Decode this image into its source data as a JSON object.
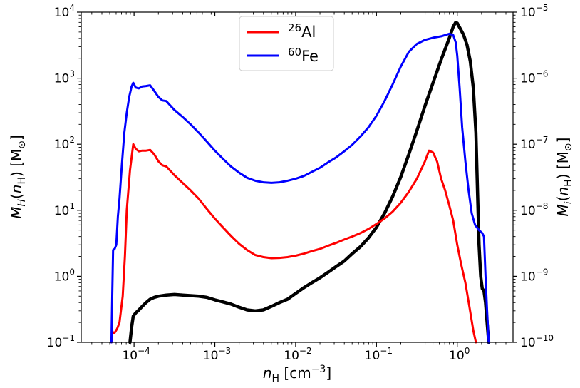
{
  "chart_data": {
    "type": "line",
    "xlabel": "n_H [cm^-3]",
    "ylabel_left": "M_H(n_H) [M_⊙]",
    "ylabel_right": "M_i(n_H) [M_⊙]",
    "x_scale": "log",
    "y_scale": "log",
    "xlim": [
      2.22e-05,
      4.9
    ],
    "ylim_left": [
      0.1,
      10000
    ],
    "ylim_right": [
      1e-10,
      1e-05
    ],
    "grid": false,
    "legend_position": "top-center",
    "x_ticks": [
      {
        "value": 0.0001,
        "base": "10",
        "exp": "-4"
      },
      {
        "value": 0.001,
        "base": "10",
        "exp": "-3"
      },
      {
        "value": 0.01,
        "base": "10",
        "exp": "-2"
      },
      {
        "value": 0.1,
        "base": "10",
        "exp": "-1"
      },
      {
        "value": 1,
        "base": "10",
        "exp": "0"
      }
    ],
    "y_ticks_left": [
      {
        "value": 0.1,
        "base": "10",
        "exp": "-1"
      },
      {
        "value": 1,
        "base": "10",
        "exp": "0"
      },
      {
        "value": 10,
        "base": "10",
        "exp": "1"
      },
      {
        "value": 100,
        "base": "10",
        "exp": "2"
      },
      {
        "value": 1000,
        "base": "10",
        "exp": "3"
      },
      {
        "value": 10000,
        "base": "10",
        "exp": "4"
      }
    ],
    "y_ticks_right": [
      {
        "value": 1e-10,
        "base": "10",
        "exp": "-10"
      },
      {
        "value": 1e-09,
        "base": "10",
        "exp": "-9"
      },
      {
        "value": 1e-08,
        "base": "10",
        "exp": "-8"
      },
      {
        "value": 1e-07,
        "base": "10",
        "exp": "-7"
      },
      {
        "value": 1e-06,
        "base": "10",
        "exp": "-6"
      },
      {
        "value": 1e-05,
        "base": "10",
        "exp": "-5"
      }
    ],
    "series": [
      {
        "name": "",
        "axis": "left",
        "color": "#000000",
        "points": [
          [
            8.91e-05,
            0.1
          ],
          [
            9.33e-05,
            0.17
          ],
          [
            9.77e-05,
            0.25
          ],
          [
            0.000105,
            0.28
          ],
          [
            0.000112,
            0.3
          ],
          [
            0.000126,
            0.35
          ],
          [
            0.000141,
            0.4
          ],
          [
            0.000158,
            0.45
          ],
          [
            0.000178,
            0.48
          ],
          [
            0.0002,
            0.5
          ],
          [
            0.000251,
            0.52
          ],
          [
            0.000316,
            0.53
          ],
          [
            0.000398,
            0.52
          ],
          [
            0.000501,
            0.51
          ],
          [
            0.000631,
            0.5
          ],
          [
            0.000794,
            0.48
          ],
          [
            0.001,
            0.44
          ],
          [
            0.00126,
            0.41
          ],
          [
            0.00158,
            0.38
          ],
          [
            0.002,
            0.34
          ],
          [
            0.00251,
            0.31
          ],
          [
            0.00316,
            0.3
          ],
          [
            0.00398,
            0.31
          ],
          [
            0.00501,
            0.35
          ],
          [
            0.00631,
            0.4
          ],
          [
            0.00794,
            0.45
          ],
          [
            0.01,
            0.55
          ],
          [
            0.0126,
            0.67
          ],
          [
            0.0158,
            0.8
          ],
          [
            0.02,
            0.95
          ],
          [
            0.0251,
            1.15
          ],
          [
            0.0316,
            1.4
          ],
          [
            0.0398,
            1.7
          ],
          [
            0.0501,
            2.2
          ],
          [
            0.0631,
            2.8
          ],
          [
            0.0794,
            3.8
          ],
          [
            0.1,
            5.5
          ],
          [
            0.126,
            9
          ],
          [
            0.158,
            16
          ],
          [
            0.2,
            32
          ],
          [
            0.251,
            70
          ],
          [
            0.316,
            160
          ],
          [
            0.398,
            380
          ],
          [
            0.501,
            850
          ],
          [
            0.631,
            1900
          ],
          [
            0.794,
            4000
          ],
          [
            0.891,
            6000
          ],
          [
            0.955,
            7000
          ],
          [
            1.0,
            6800
          ],
          [
            1.1,
            5500
          ],
          [
            1.2,
            4500
          ],
          [
            1.32,
            3200
          ],
          [
            1.45,
            1800
          ],
          [
            1.58,
            700
          ],
          [
            1.7,
            150
          ],
          [
            1.78,
            20
          ],
          [
            1.86,
            3
          ],
          [
            1.95,
            1
          ],
          [
            2.04,
            0.65
          ],
          [
            2.14,
            0.6
          ],
          [
            2.24,
            0.4
          ],
          [
            2.34,
            0.2
          ],
          [
            2.45,
            0.1
          ]
        ]
      },
      {
        "name": "26Al",
        "axis": "left",
        "color": "#ff0000",
        "points": [
          [
            5.25e-05,
            0.1
          ],
          [
            5.37e-05,
            0.15
          ],
          [
            5.5e-05,
            0.14
          ],
          [
            5.75e-05,
            0.14
          ],
          [
            6.17e-05,
            0.16
          ],
          [
            6.61e-05,
            0.2
          ],
          [
            7.24e-05,
            0.5
          ],
          [
            7.7e-05,
            2
          ],
          [
            8.13e-05,
            10
          ],
          [
            8.91e-05,
            40
          ],
          [
            9.77e-05,
            100
          ],
          [
            0.000105,
            85
          ],
          [
            0.000115,
            78
          ],
          [
            0.000126,
            80
          ],
          [
            0.000141,
            80
          ],
          [
            0.000158,
            82
          ],
          [
            0.000178,
            70
          ],
          [
            0.0002,
            55
          ],
          [
            0.000224,
            48
          ],
          [
            0.000251,
            46
          ],
          [
            0.000316,
            34
          ],
          [
            0.000398,
            26
          ],
          [
            0.000501,
            20
          ],
          [
            0.000631,
            15
          ],
          [
            0.000794,
            10.5
          ],
          [
            0.001,
            7.5
          ],
          [
            0.00126,
            5.5
          ],
          [
            0.00158,
            4.1
          ],
          [
            0.002,
            3.1
          ],
          [
            0.00251,
            2.5
          ],
          [
            0.00316,
            2.1
          ],
          [
            0.00398,
            1.95
          ],
          [
            0.00501,
            1.88
          ],
          [
            0.00631,
            1.9
          ],
          [
            0.00794,
            1.95
          ],
          [
            0.01,
            2.05
          ],
          [
            0.0126,
            2.2
          ],
          [
            0.0158,
            2.4
          ],
          [
            0.02,
            2.6
          ],
          [
            0.0251,
            2.9
          ],
          [
            0.0316,
            3.2
          ],
          [
            0.0398,
            3.6
          ],
          [
            0.0501,
            4.0
          ],
          [
            0.0631,
            4.5
          ],
          [
            0.0794,
            5.2
          ],
          [
            0.1,
            6.2
          ],
          [
            0.126,
            7.5
          ],
          [
            0.158,
            9.5
          ],
          [
            0.2,
            13
          ],
          [
            0.251,
            19
          ],
          [
            0.316,
            30
          ],
          [
            0.398,
            55
          ],
          [
            0.447,
            80
          ],
          [
            0.501,
            75
          ],
          [
            0.562,
            55
          ],
          [
            0.631,
            30
          ],
          [
            0.708,
            20
          ],
          [
            0.794,
            12
          ],
          [
            0.891,
            7
          ],
          [
            1.0,
            3
          ],
          [
            1.12,
            1.5
          ],
          [
            1.26,
            0.8
          ],
          [
            1.41,
            0.35
          ],
          [
            1.58,
            0.15
          ],
          [
            1.7,
            0.1
          ]
        ]
      },
      {
        "name": "60Fe",
        "axis": "left",
        "color": "#0000ff",
        "points": [
          [
            5.25e-05,
            0.1
          ],
          [
            5.37e-05,
            0.5
          ],
          [
            5.5e-05,
            2.5
          ],
          [
            5.75e-05,
            2.6
          ],
          [
            6.03e-05,
            3
          ],
          [
            6.31e-05,
            8
          ],
          [
            6.61e-05,
            15
          ],
          [
            7.08e-05,
            50
          ],
          [
            7.59e-05,
            150
          ],
          [
            8.13e-05,
            300
          ],
          [
            8.71e-05,
            520
          ],
          [
            9.33e-05,
            750
          ],
          [
            9.77e-05,
            850
          ],
          [
            0.000105,
            720
          ],
          [
            0.000115,
            700
          ],
          [
            0.000126,
            750
          ],
          [
            0.000141,
            760
          ],
          [
            0.000158,
            780
          ],
          [
            0.000178,
            640
          ],
          [
            0.0002,
            520
          ],
          [
            0.000224,
            460
          ],
          [
            0.000251,
            450
          ],
          [
            0.000316,
            330
          ],
          [
            0.000398,
            260
          ],
          [
            0.000501,
            200
          ],
          [
            0.000631,
            150
          ],
          [
            0.000794,
            110
          ],
          [
            0.001,
            80
          ],
          [
            0.00126,
            60
          ],
          [
            0.00158,
            46
          ],
          [
            0.002,
            37
          ],
          [
            0.00251,
            31
          ],
          [
            0.00316,
            28
          ],
          [
            0.00398,
            26.5
          ],
          [
            0.00501,
            26
          ],
          [
            0.00631,
            26.5
          ],
          [
            0.00794,
            28
          ],
          [
            0.01,
            30
          ],
          [
            0.0126,
            33
          ],
          [
            0.0158,
            38
          ],
          [
            0.02,
            44
          ],
          [
            0.0251,
            53
          ],
          [
            0.0316,
            63
          ],
          [
            0.0398,
            78
          ],
          [
            0.0501,
            98
          ],
          [
            0.0631,
            130
          ],
          [
            0.0794,
            180
          ],
          [
            0.1,
            270
          ],
          [
            0.126,
            450
          ],
          [
            0.158,
            800
          ],
          [
            0.2,
            1500
          ],
          [
            0.251,
            2500
          ],
          [
            0.316,
            3300
          ],
          [
            0.398,
            3800
          ],
          [
            0.501,
            4100
          ],
          [
            0.631,
            4300
          ],
          [
            0.794,
            4700
          ],
          [
            0.891,
            4500
          ],
          [
            0.955,
            3500
          ],
          [
            1.0,
            2200
          ],
          [
            1.07,
            700
          ],
          [
            1.15,
            180
          ],
          [
            1.26,
            55
          ],
          [
            1.38,
            20
          ],
          [
            1.51,
            9
          ],
          [
            1.66,
            6
          ],
          [
            1.86,
            5
          ],
          [
            2.04,
            4.5
          ],
          [
            2.14,
            4
          ],
          [
            2.24,
            1
          ],
          [
            2.34,
            0.3
          ],
          [
            2.45,
            0.1
          ]
        ]
      }
    ]
  },
  "legend": {
    "items": [
      {
        "mass": "26",
        "element": "Al",
        "color": "#ff0000"
      },
      {
        "mass": "60",
        "element": "Fe",
        "color": "#0000ff"
      }
    ]
  }
}
